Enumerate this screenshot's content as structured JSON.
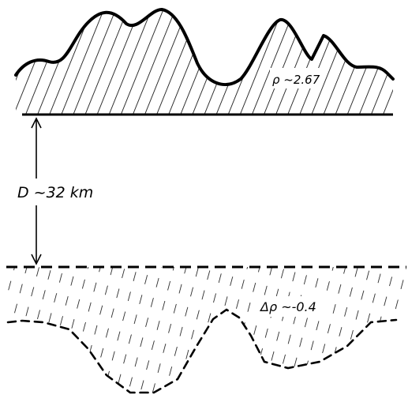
{
  "labels": {
    "topography_density": "ρ ~2.67",
    "depth": "D ~32 km",
    "root_density_contrast": "Δρ ~-0.4"
  }
}
